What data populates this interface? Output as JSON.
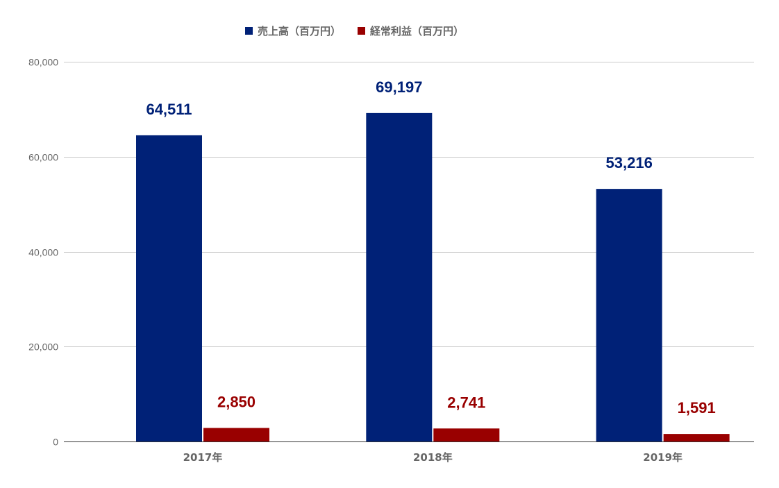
{
  "chart_data": {
    "type": "bar",
    "categories": [
      "2017年",
      "2018年",
      "2019年"
    ],
    "series": [
      {
        "name": "売上高（百万円）",
        "color": "#002177",
        "values": [
          64511,
          69197,
          53216
        ],
        "labels": [
          "64,511",
          "69,197",
          "53,216"
        ]
      },
      {
        "name": "経常利益（百万円）",
        "color": "#990000",
        "values": [
          2850,
          2741,
          1591
        ],
        "labels": [
          "2,850",
          "2,741",
          "1,591"
        ]
      }
    ],
    "ylim": [
      0,
      80000
    ],
    "yticks": [
      0,
      20000,
      40000,
      60000,
      80000
    ],
    "ytick_labels": [
      "0",
      "20,000",
      "40,000",
      "60,000",
      "80,000"
    ],
    "grid": true,
    "legend_position": "top-center",
    "title": "",
    "xlabel": "",
    "ylabel": ""
  }
}
